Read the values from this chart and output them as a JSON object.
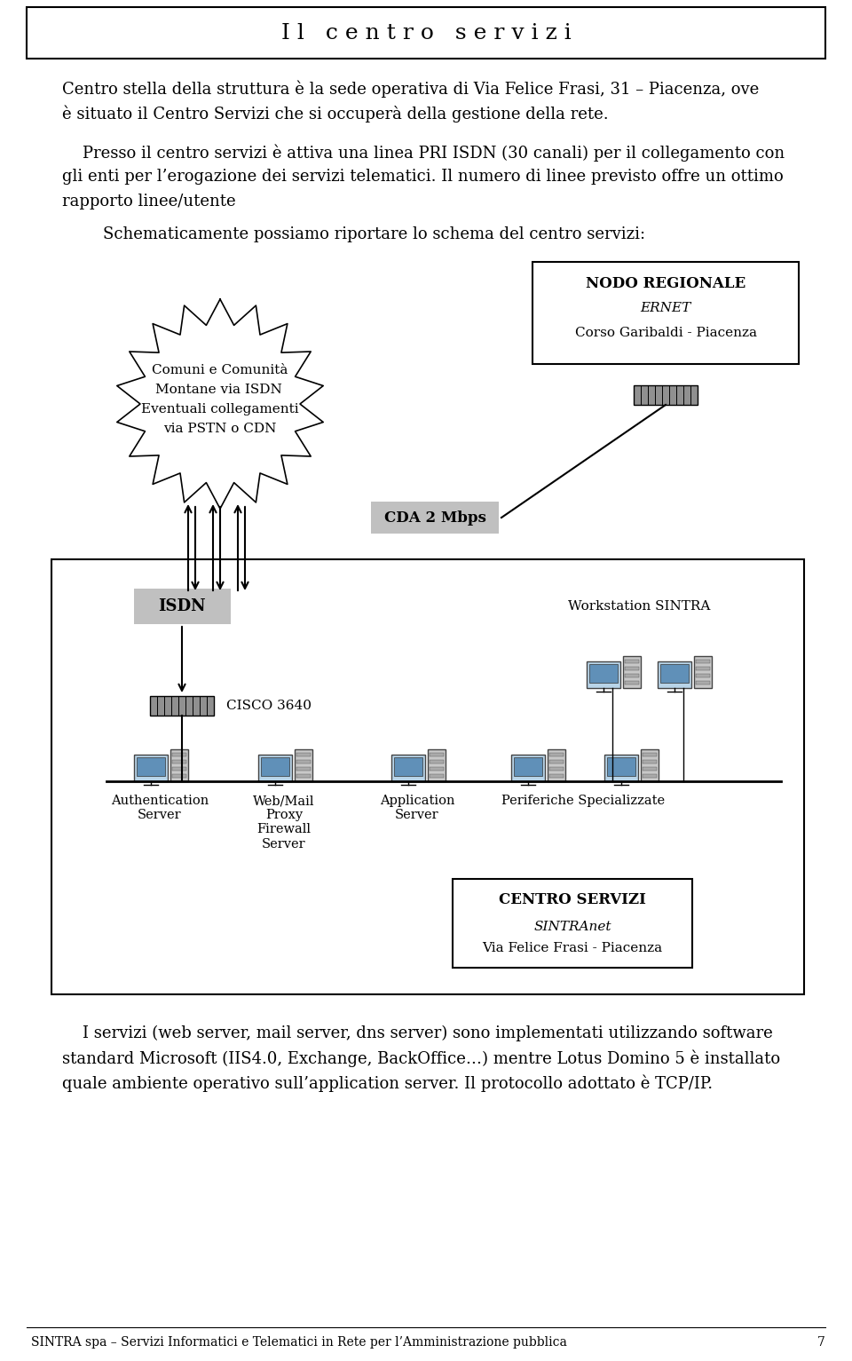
{
  "title": "I l   c e n t r o   s e r v i z i",
  "bg_color": "#ffffff",
  "text_color": "#000000",
  "para1_line1": "Centro stella della struttura è la sede operativa di Via Felice Frasi, 31 – Piacenza, ove",
  "para1_line2": "è situato il Centro Servizi che si occuperà della gestione della rete.",
  "para2_line1": "    Presso il centro servizi è attiva una linea PRI ISDN (30 canali) per il collegamento con",
  "para2_line2": "gli enti per l’erogazione dei servizi telematici. Il numero di linee previsto offre un ottimo",
  "para2_line3": "rapporto linee/utente",
  "para3": "        Schematicamente possiamo riportare lo schema del centro servizi:",
  "para4_line1": "    I servizi (web server, mail server, dns server) sono implementati utilizzando software",
  "para4_line2": "standard Microsoft (IIS4.0, Exchange, BackOffice…) mentre Lotus Domino 5 è installato",
  "para4_line3": "quale ambiente operativo sull’application server. Il protocollo adottato è TCP/IP.",
  "footer": "SINTRA spa – Servizi Informatici e Telematici in Rete per l’Amministrazione pubblica",
  "footer_page": "7",
  "nodo_title": "NODO REGIONALE",
  "nodo_subtitle": "ERNET",
  "nodo_address": "Corso Garibaldi - Piacenza",
  "cloud_line1": "Comuni e Comunità",
  "cloud_line2_a": "Montane via ",
  "cloud_line2_b": "ISDN",
  "cloud_line3": "Eventuali collegamenti",
  "cloud_line4_a": "via ",
  "cloud_line4_b": "PSTN",
  "cloud_line4_c": " o ",
  "cloud_line4_d": "CDN",
  "cda_label": "CDA 2 Mbps",
  "isdn_label": "ISDN",
  "cisco_label": "CISCO 3640",
  "workstation_label": "Workstation SINTRA",
  "auth_label": "Authentication\nServer",
  "web_label": "Web/Mail\nProxy\nFirewall\nServer",
  "app_label": "Application\nServer",
  "peri_label": "Periferiche Specializzate",
  "centro_title": "CENTRO SERVIZI",
  "centro_subtitle": "SINTRAnet",
  "centro_address": "Via Felice Frasi - Piacenza"
}
